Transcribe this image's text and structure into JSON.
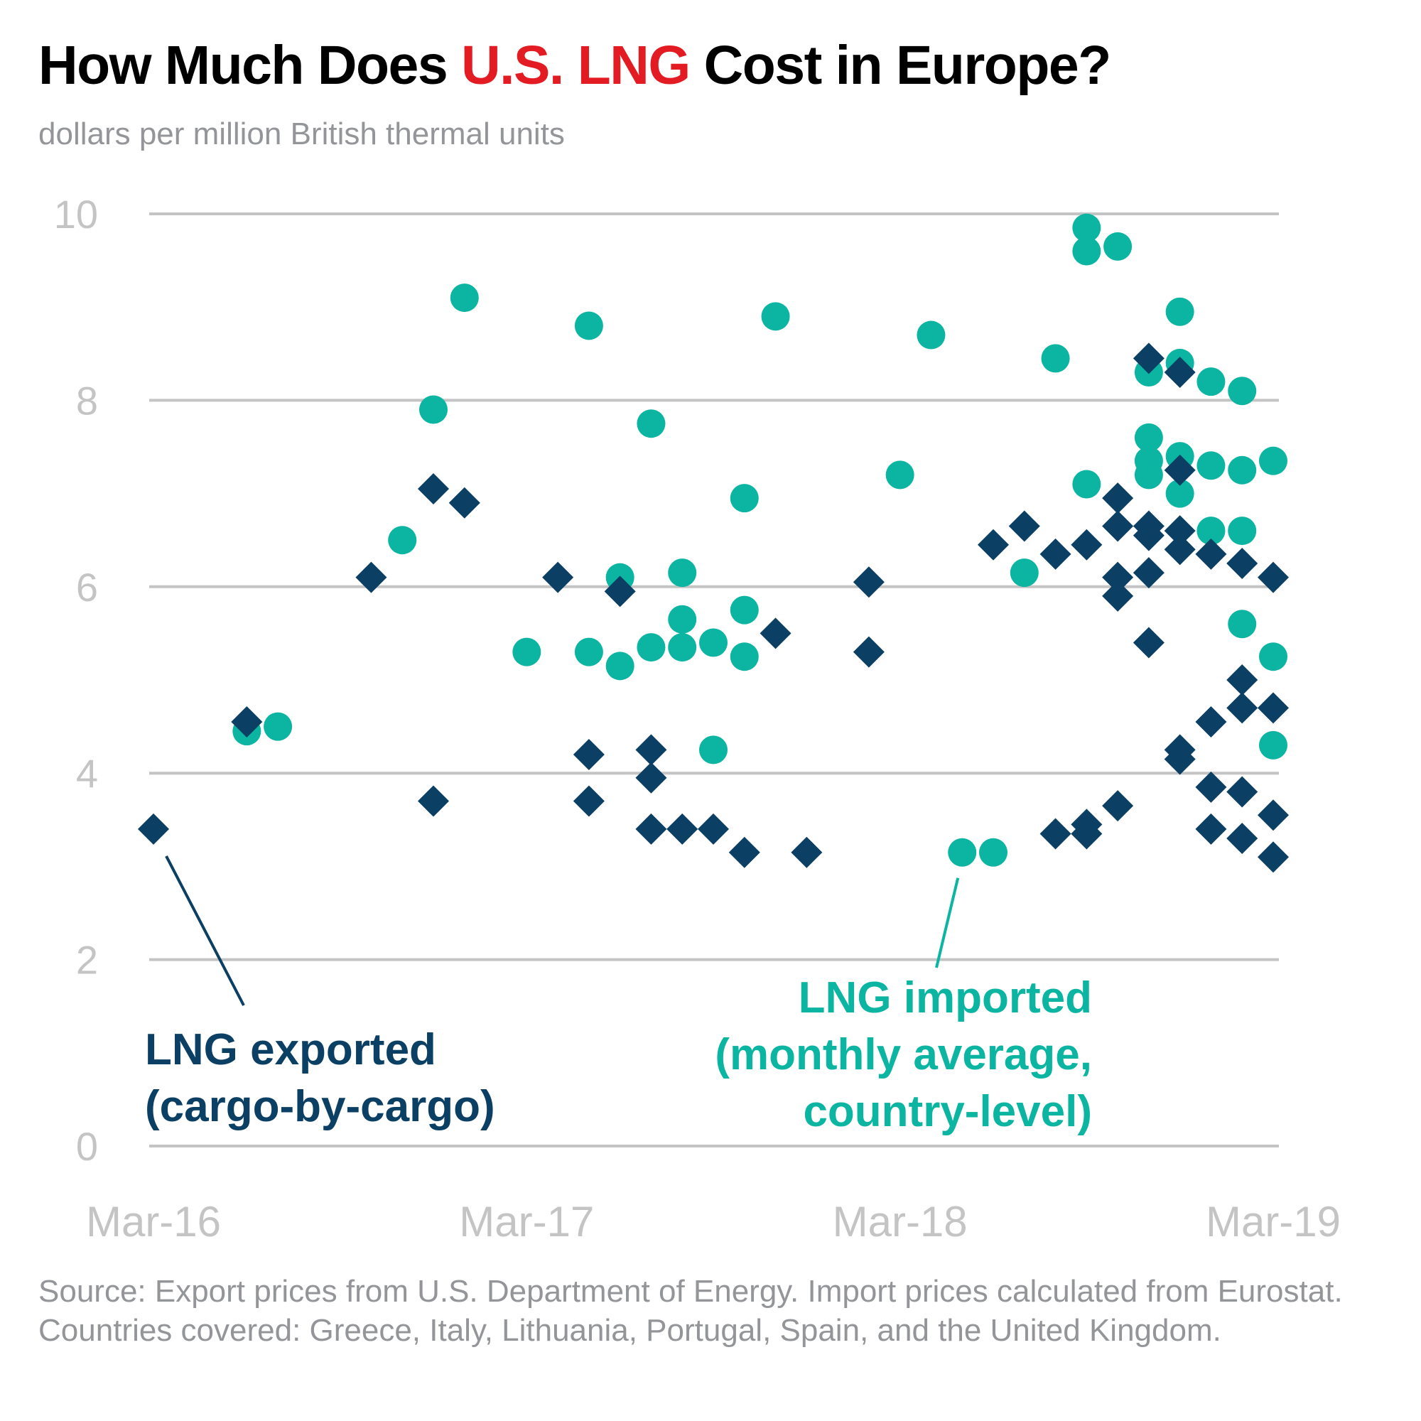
{
  "header": {
    "title_before": "How Much Does ",
    "title_accent": "U.S. LNG",
    "title_after": " Cost in Europe?",
    "subtitle": "dollars per million British thermal units"
  },
  "colors": {
    "exported": "#0b3f63",
    "imported": "#0bb5a1",
    "accent": "#e31b23",
    "grid": "#c4c4c4"
  },
  "chart_data": {
    "type": "scatter",
    "title": "How Much Does U.S. LNG Cost in Europe?",
    "ylabel": "dollars per million British thermal units",
    "xlabel": "",
    "x_unit": "months since Mar-16",
    "xlim": [
      0,
      36
    ],
    "ylim": [
      0,
      10
    ],
    "yticks": [
      "0",
      "2",
      "4",
      "6",
      "8",
      "10"
    ],
    "ytick_values": [
      0,
      2,
      4,
      6,
      8,
      10
    ],
    "xticks": [
      "Mar-16",
      "Mar-17",
      "Mar-18",
      "Mar-19"
    ],
    "xtick_values": [
      0,
      12,
      24,
      36
    ],
    "grid": true,
    "legend": "inline annotations",
    "series": [
      {
        "name": "LNG exported (cargo-by-cargo)",
        "label_line1": "LNG exported",
        "label_line2": "(cargo-by-cargo)",
        "marker": "diamond",
        "points": [
          [
            0,
            3.4
          ],
          [
            3,
            4.55
          ],
          [
            7,
            6.1
          ],
          [
            9,
            7.05
          ],
          [
            9,
            3.7
          ],
          [
            10,
            6.9
          ],
          [
            13,
            6.1
          ],
          [
            14,
            4.2
          ],
          [
            14,
            3.7
          ],
          [
            15,
            5.95
          ],
          [
            16,
            4.25
          ],
          [
            16,
            3.95
          ],
          [
            16,
            3.4
          ],
          [
            17,
            3.4
          ],
          [
            18,
            3.4
          ],
          [
            19,
            3.15
          ],
          [
            20,
            5.5
          ],
          [
            21,
            3.15
          ],
          [
            23,
            6.05
          ],
          [
            23,
            5.3
          ],
          [
            27,
            6.45
          ],
          [
            28,
            6.65
          ],
          [
            29,
            6.35
          ],
          [
            29,
            3.35
          ],
          [
            30,
            6.45
          ],
          [
            30,
            3.45
          ],
          [
            30,
            3.35
          ],
          [
            31,
            6.95
          ],
          [
            31,
            6.65
          ],
          [
            31,
            6.1
          ],
          [
            31,
            5.9
          ],
          [
            31,
            3.65
          ],
          [
            32,
            8.45
          ],
          [
            32,
            6.65
          ],
          [
            32,
            6.55
          ],
          [
            32,
            6.15
          ],
          [
            32,
            5.4
          ],
          [
            33,
            8.3
          ],
          [
            33,
            7.25
          ],
          [
            33,
            6.6
          ],
          [
            33,
            6.4
          ],
          [
            33,
            4.25
          ],
          [
            33,
            4.15
          ],
          [
            34,
            6.35
          ],
          [
            34,
            4.55
          ],
          [
            34,
            3.85
          ],
          [
            34,
            3.4
          ],
          [
            35,
            6.25
          ],
          [
            35,
            5.0
          ],
          [
            35,
            4.7
          ],
          [
            35,
            3.8
          ],
          [
            35,
            3.3
          ],
          [
            36,
            6.1
          ],
          [
            36,
            4.7
          ],
          [
            36,
            3.55
          ],
          [
            36,
            3.1
          ]
        ]
      },
      {
        "name": "LNG imported (monthly average, country-level)",
        "label_line1": "LNG imported",
        "label_line2": "(monthly average,",
        "label_line3": "country-level)",
        "marker": "circle",
        "points": [
          [
            3,
            4.45
          ],
          [
            4,
            4.5
          ],
          [
            8,
            6.5
          ],
          [
            9,
            7.9
          ],
          [
            10,
            9.1
          ],
          [
            12,
            5.3
          ],
          [
            14,
            8.8
          ],
          [
            14,
            5.3
          ],
          [
            15,
            6.1
          ],
          [
            15,
            5.15
          ],
          [
            16,
            7.75
          ],
          [
            16,
            5.35
          ],
          [
            17,
            6.15
          ],
          [
            17,
            5.65
          ],
          [
            17,
            5.35
          ],
          [
            18,
            5.4
          ],
          [
            18,
            4.25
          ],
          [
            19,
            6.95
          ],
          [
            19,
            5.75
          ],
          [
            19,
            5.25
          ],
          [
            20,
            8.9
          ],
          [
            24,
            7.2
          ],
          [
            25,
            8.7
          ],
          [
            26,
            3.15
          ],
          [
            27,
            3.15
          ],
          [
            28,
            6.15
          ],
          [
            29,
            8.45
          ],
          [
            30,
            9.85
          ],
          [
            30,
            9.6
          ],
          [
            30,
            7.1
          ],
          [
            31,
            9.65
          ],
          [
            32,
            8.3
          ],
          [
            32,
            7.6
          ],
          [
            32,
            7.35
          ],
          [
            32,
            7.2
          ],
          [
            33,
            8.95
          ],
          [
            33,
            8.4
          ],
          [
            33,
            7.4
          ],
          [
            33,
            7.0
          ],
          [
            34,
            8.2
          ],
          [
            34,
            7.3
          ],
          [
            34,
            6.6
          ],
          [
            35,
            8.1
          ],
          [
            35,
            7.25
          ],
          [
            35,
            6.6
          ],
          [
            35,
            5.6
          ],
          [
            36,
            7.35
          ],
          [
            36,
            5.25
          ],
          [
            36,
            4.3
          ]
        ]
      }
    ],
    "annotations": [
      {
        "series": 0,
        "text": "LNG exported (cargo-by-cargo)",
        "points_to": [
          0,
          3.4
        ]
      },
      {
        "series": 1,
        "text": "LNG imported (monthly average, country-level)",
        "points_to": [
          26,
          3.15
        ]
      }
    ]
  },
  "footer": {
    "source": "Source: Export prices from U.S. Department of Energy. Import prices calculated from Eurostat. Countries covered: Greece, Italy, Lithuania, Portugal, Spain, and the United Kingdom."
  }
}
